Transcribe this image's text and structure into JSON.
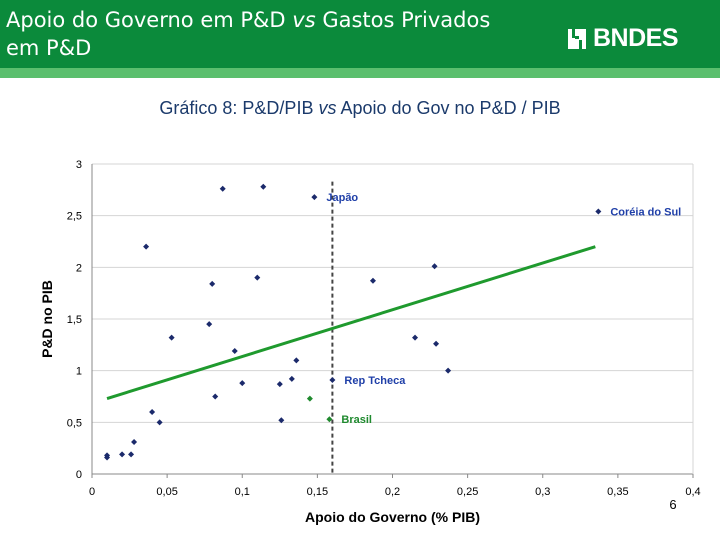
{
  "header": {
    "title_line1_a": "Apoio do Governo em P&D ",
    "title_line1_em": "vs",
    "title_line1_b": " Gastos Privados",
    "title_line2": "em P&D",
    "logo_text": "BNDES"
  },
  "page_number": "6",
  "colors": {
    "header_bg": "#0b8a3b",
    "accent_rule": "#5bbf6e",
    "point_default": "#1b2a6b",
    "point_brasil": "#1f8a2e",
    "trendline": "#1f9a2e",
    "label_blue": "#1f3fa8",
    "label_green": "#1f8a2e"
  },
  "chart_data": {
    "type": "scatter",
    "title_a": "Gráfico 8: P&D/PIB ",
    "title_em": "vs",
    "title_b": " Apoio do Gov no P&D / PIB",
    "xlabel": "Apoio do Governo (% PIB)",
    "ylabel": "P&D no PIB",
    "xlim": [
      0,
      0.4
    ],
    "ylim": [
      0,
      3
    ],
    "x_ticks": [
      "0",
      "0,05",
      "0,1",
      "0,15",
      "0,2",
      "0,25",
      "0,3",
      "0,35",
      "0,4"
    ],
    "y_ticks": [
      "0",
      "0,5",
      "1",
      "1,5",
      "2",
      "2,5",
      "3"
    ],
    "grid": "horizontal",
    "reference_line_x": 0.16,
    "trendline": {
      "x1": 0.01,
      "y1": 0.73,
      "x2": 0.335,
      "y2": 2.2
    },
    "points": [
      {
        "x": 0.01,
        "y": 0.16
      },
      {
        "x": 0.01,
        "y": 0.18
      },
      {
        "x": 0.02,
        "y": 0.19
      },
      {
        "x": 0.026,
        "y": 0.19
      },
      {
        "x": 0.028,
        "y": 0.31
      },
      {
        "x": 0.036,
        "y": 2.2
      },
      {
        "x": 0.04,
        "y": 0.6
      },
      {
        "x": 0.045,
        "y": 0.5
      },
      {
        "x": 0.053,
        "y": 1.32
      },
      {
        "x": 0.078,
        "y": 1.45
      },
      {
        "x": 0.08,
        "y": 1.84
      },
      {
        "x": 0.082,
        "y": 0.75
      },
      {
        "x": 0.087,
        "y": 2.76
      },
      {
        "x": 0.095,
        "y": 1.19
      },
      {
        "x": 0.1,
        "y": 0.88
      },
      {
        "x": 0.11,
        "y": 1.9
      },
      {
        "x": 0.114,
        "y": 2.78
      },
      {
        "x": 0.125,
        "y": 0.87
      },
      {
        "x": 0.126,
        "y": 0.52
      },
      {
        "x": 0.133,
        "y": 0.92
      },
      {
        "x": 0.136,
        "y": 1.1
      },
      {
        "x": 0.148,
        "y": 2.68,
        "label": "Japão",
        "label_color": "#1f3fa8"
      },
      {
        "x": 0.16,
        "y": 0.91,
        "label": "Rep Tcheca",
        "label_color": "#1f3fa8"
      },
      {
        "x": 0.158,
        "y": 0.53,
        "label": "Brasil",
        "label_color": "#1f8a2e",
        "color": "#1f8a2e"
      },
      {
        "x": 0.145,
        "y": 0.73,
        "color": "#1f8a2e"
      },
      {
        "x": 0.187,
        "y": 1.87
      },
      {
        "x": 0.215,
        "y": 1.32
      },
      {
        "x": 0.228,
        "y": 2.01
      },
      {
        "x": 0.229,
        "y": 1.26
      },
      {
        "x": 0.237,
        "y": 1.0
      },
      {
        "x": 0.337,
        "y": 2.54,
        "label": "Coréia do Sul",
        "label_color": "#1f3fa8"
      }
    ]
  }
}
